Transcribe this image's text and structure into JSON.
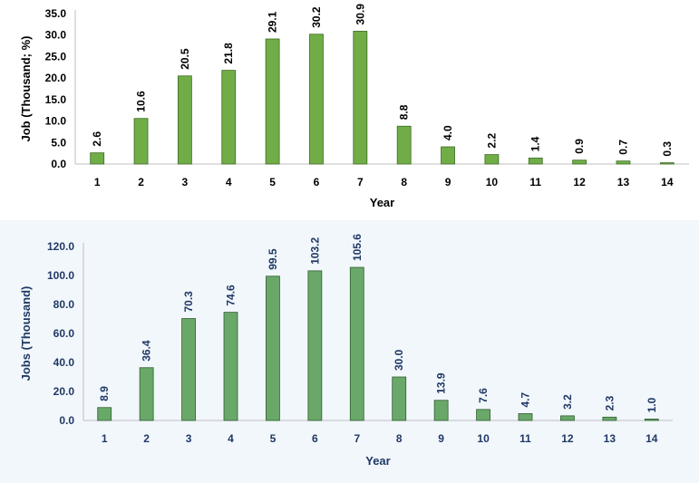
{
  "chart_data": [
    {
      "type": "bar",
      "title": "",
      "xlabel": "Year",
      "ylabel": "Job (Thousand; %)",
      "categories": [
        "1",
        "2",
        "3",
        "4",
        "5",
        "6",
        "7",
        "8",
        "9",
        "10",
        "11",
        "12",
        "13",
        "14"
      ],
      "values": [
        2.6,
        10.6,
        20.5,
        21.8,
        29.1,
        30.2,
        30.9,
        8.8,
        4.0,
        2.2,
        1.4,
        0.9,
        0.7,
        0.3
      ],
      "value_labels": [
        "2.6",
        "10.6",
        "20.5",
        "21.8",
        "29.1",
        "30.2",
        "30.9",
        "8.8",
        "4.0",
        "2.2",
        "1.4",
        "0.9",
        "0.7",
        "0.3"
      ],
      "ylim": [
        0,
        35
      ],
      "yticks": [
        "0.0",
        "5.0",
        "10.0",
        "15.0",
        "20.0",
        "25.0",
        "30.0",
        "35.0"
      ],
      "grid": false,
      "bar_color": "#70ad47",
      "bar_edge_color": "#3e6b24",
      "text_color": "#000000",
      "background": "#ffffff"
    },
    {
      "type": "bar",
      "title": "",
      "xlabel": "Year",
      "ylabel": "Jobs (Thousand)",
      "categories": [
        "1",
        "2",
        "3",
        "4",
        "5",
        "6",
        "7",
        "8",
        "9",
        "10",
        "11",
        "12",
        "13",
        "14"
      ],
      "values": [
        8.9,
        36.4,
        70.3,
        74.6,
        99.5,
        103.2,
        105.6,
        30.0,
        13.9,
        7.6,
        4.7,
        3.2,
        2.3,
        1.0
      ],
      "value_labels": [
        "8.9",
        "36.4",
        "70.3",
        "74.6",
        "99.5",
        "103.2",
        "105.6",
        "30.0",
        "13.9",
        "7.6",
        "4.7",
        "3.2",
        "2.3",
        "1.0"
      ],
      "ylim": [
        0,
        120
      ],
      "yticks": [
        "0.0",
        "20.0",
        "40.0",
        "60.0",
        "80.0",
        "100.0",
        "120.0"
      ],
      "grid": false,
      "bar_color": "#6aa86a",
      "bar_edge_color": "#2f5e2f",
      "text_color": "#1f3864",
      "background": "#f2f7fc"
    }
  ]
}
